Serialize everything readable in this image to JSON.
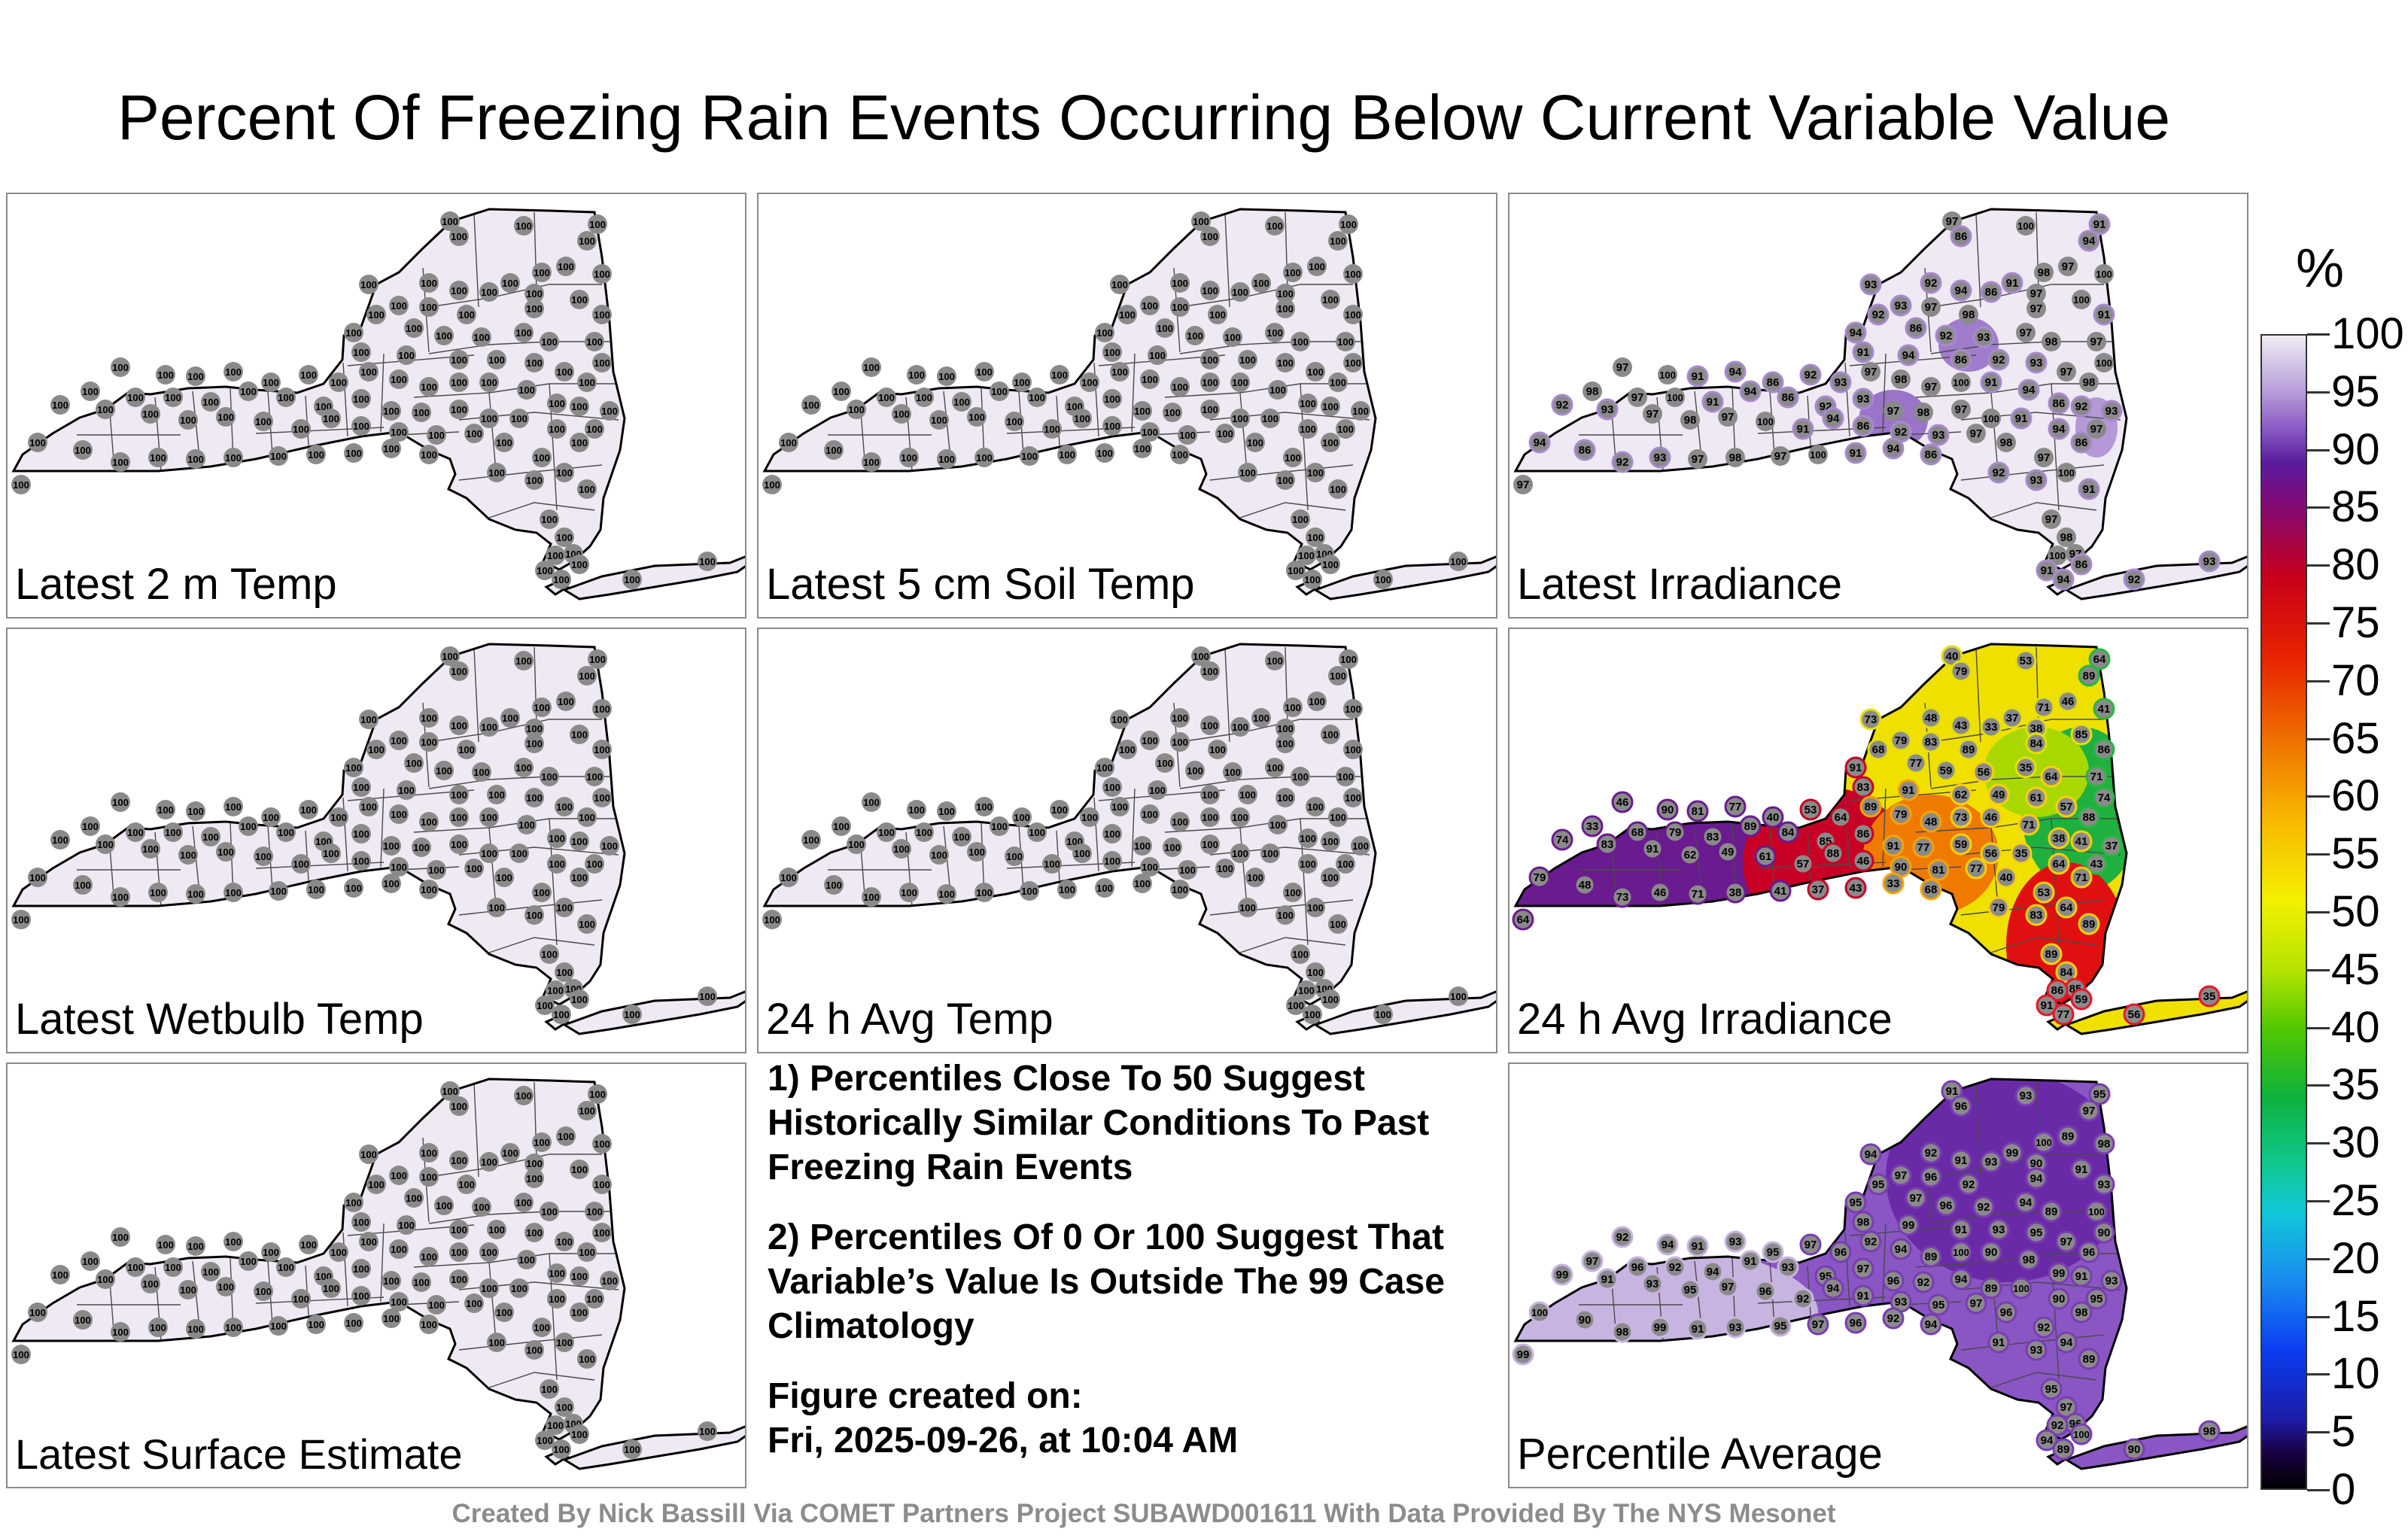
{
  "title": "Percent Of Freezing Rain Events Occurring Below Current Variable Value",
  "panels": [
    {
      "label": "Latest 2 m Temp",
      "scheme": "uniform",
      "values": [
        100
      ]
    },
    {
      "label": "Latest 5 cm Soil Temp",
      "scheme": "uniform",
      "values": [
        100
      ]
    },
    {
      "label": "Latest Irradiance",
      "scheme": "irradiance",
      "values": [
        97,
        100,
        91,
        94,
        86,
        92,
        93,
        97,
        98
      ]
    },
    {
      "label": "Latest Wetbulb Temp",
      "scheme": "uniform",
      "values": [
        100
      ]
    },
    {
      "label": "24 h Avg Temp",
      "scheme": "uniform",
      "values": [
        100
      ]
    },
    {
      "label": "24 h Avg Irradiance",
      "scheme": "avgirr",
      "values": [
        40,
        53,
        64,
        89,
        79,
        48,
        73,
        46,
        71,
        38,
        41,
        37,
        43,
        33,
        68,
        79,
        83,
        89,
        84,
        85,
        86,
        91,
        77,
        59,
        56,
        35,
        64,
        71,
        74,
        83,
        91,
        62,
        49,
        61,
        57,
        88,
        46,
        90,
        81,
        77
      ]
    },
    {
      "label": "Percentile Average",
      "scheme": "average",
      "values": [
        91,
        93,
        95,
        97,
        96,
        92,
        94,
        89,
        100,
        90,
        98,
        99,
        91,
        93,
        95,
        97,
        96,
        92,
        94
      ]
    }
  ],
  "notes": [
    "1) Percentiles Close To 50 Suggest Historically Similar Conditions To Past Freezing Rain Events",
    "2) Percentiles Of 0 Or 100 Suggest That Variable’s Value Is Outside The 99 Case Climatology"
  ],
  "figure_created_label": "Figure created on:",
  "figure_created_date": "Fri, 2025-09-26, at 10:04 AM",
  "credit": "Created By Nick Bassill Via COMET Partners Project SUBAWD001611 With Data Provided By The NYS Mesonet",
  "colorbar": {
    "unit": "%",
    "ticks": [
      "100",
      "95",
      "90",
      "85",
      "80",
      "75",
      "70",
      "65",
      "60",
      "55",
      "50",
      "45",
      "40",
      "35",
      "30",
      "25",
      "20",
      "15",
      "10",
      "5",
      "0"
    ]
  }
}
